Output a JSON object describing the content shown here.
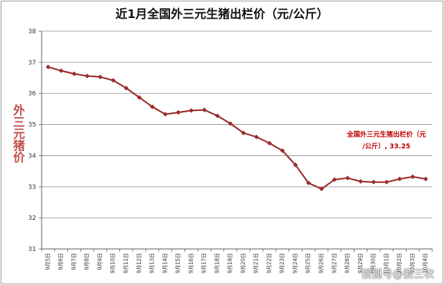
{
  "chart_data": {
    "type": "line",
    "title": "近1月全国外三元生猪出栏价（元/公斤）",
    "ylabel": "外三元猪价",
    "ylim": [
      31,
      38
    ],
    "yticks": [
      31,
      32,
      33,
      34,
      35,
      36,
      37,
      38
    ],
    "grid": true,
    "categories": [
      "9月5日",
      "9月6日",
      "9月7日",
      "9月8日",
      "9月9日",
      "9月10日",
      "9月11日",
      "9月12日",
      "9月13日",
      "9月14日",
      "9月15日",
      "9月16日",
      "9月17日",
      "9月18日",
      "9月19日",
      "9月20日",
      "9月21日",
      "9月22日",
      "9月23日",
      "9月24日",
      "9月25日",
      "9月26日",
      "9月27日",
      "9月28日",
      "9月29日",
      "9月30日",
      "10月1日",
      "10月2日",
      "10月3日",
      "10月4日"
    ],
    "series": [
      {
        "values": [
          36.85,
          36.73,
          36.63,
          36.56,
          36.53,
          36.42,
          36.17,
          35.87,
          35.57,
          35.33,
          35.39,
          35.45,
          35.47,
          35.28,
          35.03,
          34.73,
          34.6,
          34.4,
          34.16,
          33.7,
          33.12,
          32.93,
          33.23,
          33.28,
          33.17,
          33.15,
          33.15,
          33.25,
          33.32,
          33.25
        ],
        "color": "#9b2c2c"
      }
    ],
    "annotation": {
      "line1": "全国外三元生猪出栏价（元",
      "line2": "/公斤）, 33.25",
      "color": "#c00000"
    }
  },
  "watermark": "搜狐号@要三农"
}
